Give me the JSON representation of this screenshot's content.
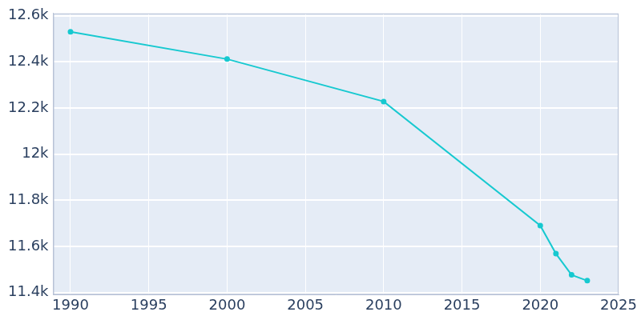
{
  "chart_data": {
    "type": "line",
    "x": [
      1990,
      2000,
      2010,
      2020,
      2021,
      2022,
      2023
    ],
    "values": [
      12530,
      12412,
      12228,
      11690,
      11568,
      11476,
      11451
    ],
    "color": "#17c9d0",
    "marker": "circle",
    "xlim": [
      1988.9,
      2025
    ],
    "xticks": [
      1990,
      1995,
      2000,
      2005,
      2010,
      2015,
      2020,
      2025
    ],
    "ylim": [
      11390,
      12610
    ],
    "yticks": [
      {
        "value": 11400,
        "label": "11.4k"
      },
      {
        "value": 11600,
        "label": "11.6k"
      },
      {
        "value": 11800,
        "label": "11.8k"
      },
      {
        "value": 12000,
        "label": "12k"
      },
      {
        "value": 12200,
        "label": "12.2k"
      },
      {
        "value": 12400,
        "label": "12.4k"
      },
      {
        "value": 12600,
        "label": "12.6k"
      }
    ],
    "grid": true
  }
}
